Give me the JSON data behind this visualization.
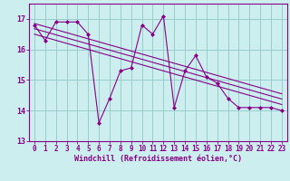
{
  "x_data": [
    0,
    1,
    2,
    3,
    4,
    5,
    6,
    7,
    8,
    9,
    10,
    11,
    12,
    13,
    14,
    15,
    16,
    17,
    18,
    19,
    20,
    21,
    22,
    23
  ],
  "y_data": [
    16.8,
    16.3,
    16.9,
    16.9,
    16.9,
    16.5,
    13.6,
    14.4,
    15.3,
    15.4,
    16.8,
    16.5,
    17.1,
    14.1,
    15.3,
    15.8,
    15.1,
    14.9,
    14.4,
    14.1,
    14.1,
    14.1,
    14.1,
    14.0
  ],
  "trend_lines": [
    {
      "x0": 0,
      "y0": 16.85,
      "x1": 23,
      "y1": 14.55
    },
    {
      "x0": 0,
      "y0": 16.68,
      "x1": 23,
      "y1": 14.38
    },
    {
      "x0": 0,
      "y0": 16.5,
      "x1": 23,
      "y1": 14.2
    }
  ],
  "xlabel": "Windchill (Refroidissement éolien,°C)",
  "ylim": [
    13.0,
    17.5
  ],
  "xlim": [
    -0.5,
    23.5
  ],
  "yticks": [
    13,
    14,
    15,
    16,
    17
  ],
  "xticks": [
    0,
    1,
    2,
    3,
    4,
    5,
    6,
    7,
    8,
    9,
    10,
    11,
    12,
    13,
    14,
    15,
    16,
    17,
    18,
    19,
    20,
    21,
    22,
    23
  ],
  "line_color": "#880088",
  "bg_color": "#cceeee",
  "grid_color": "#99cccc",
  "tick_fontsize": 5.5,
  "xlabel_fontsize": 6.0
}
